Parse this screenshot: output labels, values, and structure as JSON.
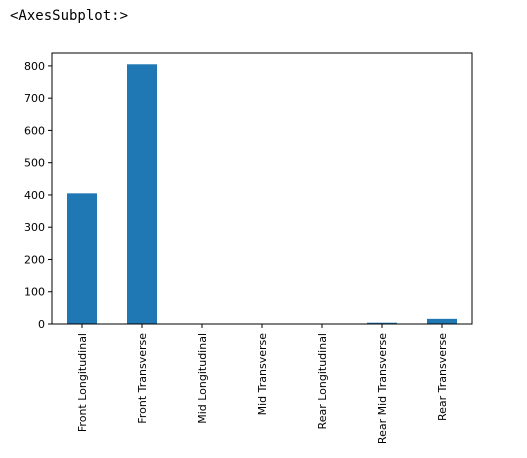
{
  "output_text": "<AxesSubplot:>",
  "chart_data": {
    "type": "bar",
    "categories": [
      "Front Longitudinal",
      "Front Transverse",
      "Mid Longitudinal",
      "Mid Transverse",
      "Rear Longitudinal",
      "Rear Mid Transverse",
      "Rear Transverse"
    ],
    "values": [
      405,
      805,
      0,
      0,
      0,
      4,
      16
    ],
    "title": "",
    "xlabel": "",
    "ylabel": "",
    "ylim": [
      0,
      840
    ],
    "yticks": [
      0,
      100,
      200,
      300,
      400,
      500,
      600,
      700,
      800
    ],
    "grid": false,
    "bar_color": "#1f77b4"
  }
}
